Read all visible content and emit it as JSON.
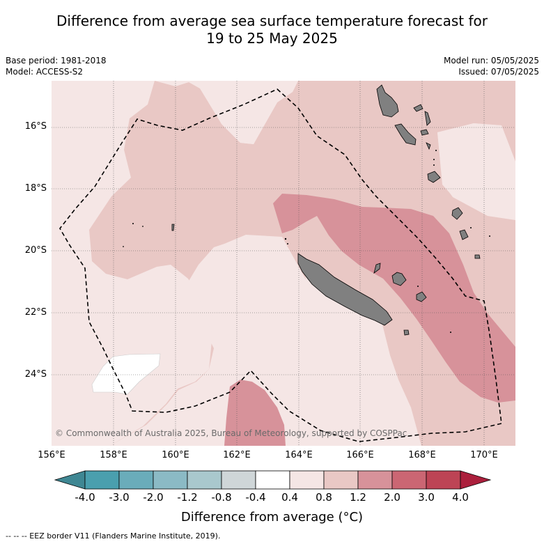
{
  "header": {
    "title_line1": "Difference from average sea surface temperature forecast for",
    "title_line2": "19 to 25 May 2025",
    "base_period": "Base period: 1981-2018",
    "model": "Model: ACCESS-S2",
    "model_run": "Model run: 05/05/2025",
    "issued": "Issued: 07/05/2025"
  },
  "map": {
    "lat_labels": [
      "16°S",
      "18°S",
      "20°S",
      "22°S",
      "24°S"
    ],
    "lon_labels": [
      "156°E",
      "158°E",
      "160°E",
      "162°E",
      "164°E",
      "166°E",
      "168°E",
      "170°E"
    ],
    "copyright": "© Commonwealth of Australia 2025, Bureau of Meteorology, supported by COSPPac",
    "land_color": "#808080",
    "eez_line": "dashed black"
  },
  "colorbar": {
    "labels": [
      "-4.0",
      "-3.0",
      "-2.0",
      "-1.2",
      "-0.8",
      "-0.4",
      "0.4",
      "0.8",
      "1.2",
      "2.0",
      "3.0",
      "4.0"
    ],
    "colors": [
      "#4a9fae",
      "#6aacba",
      "#8bbac5",
      "#a9c8cd",
      "#cfd6d8",
      "#ffffff",
      "#f5e6e5",
      "#e9c8c5",
      "#d7929a",
      "#cb6673",
      "#bd4455"
    ],
    "under_color": "#3f8793",
    "over_color": "#ab1f3c",
    "title": "Difference from average (°C)"
  },
  "footer": {
    "legend": "--  --  -- EEZ border V11 (Flanders Marine Institute, 2019)."
  }
}
